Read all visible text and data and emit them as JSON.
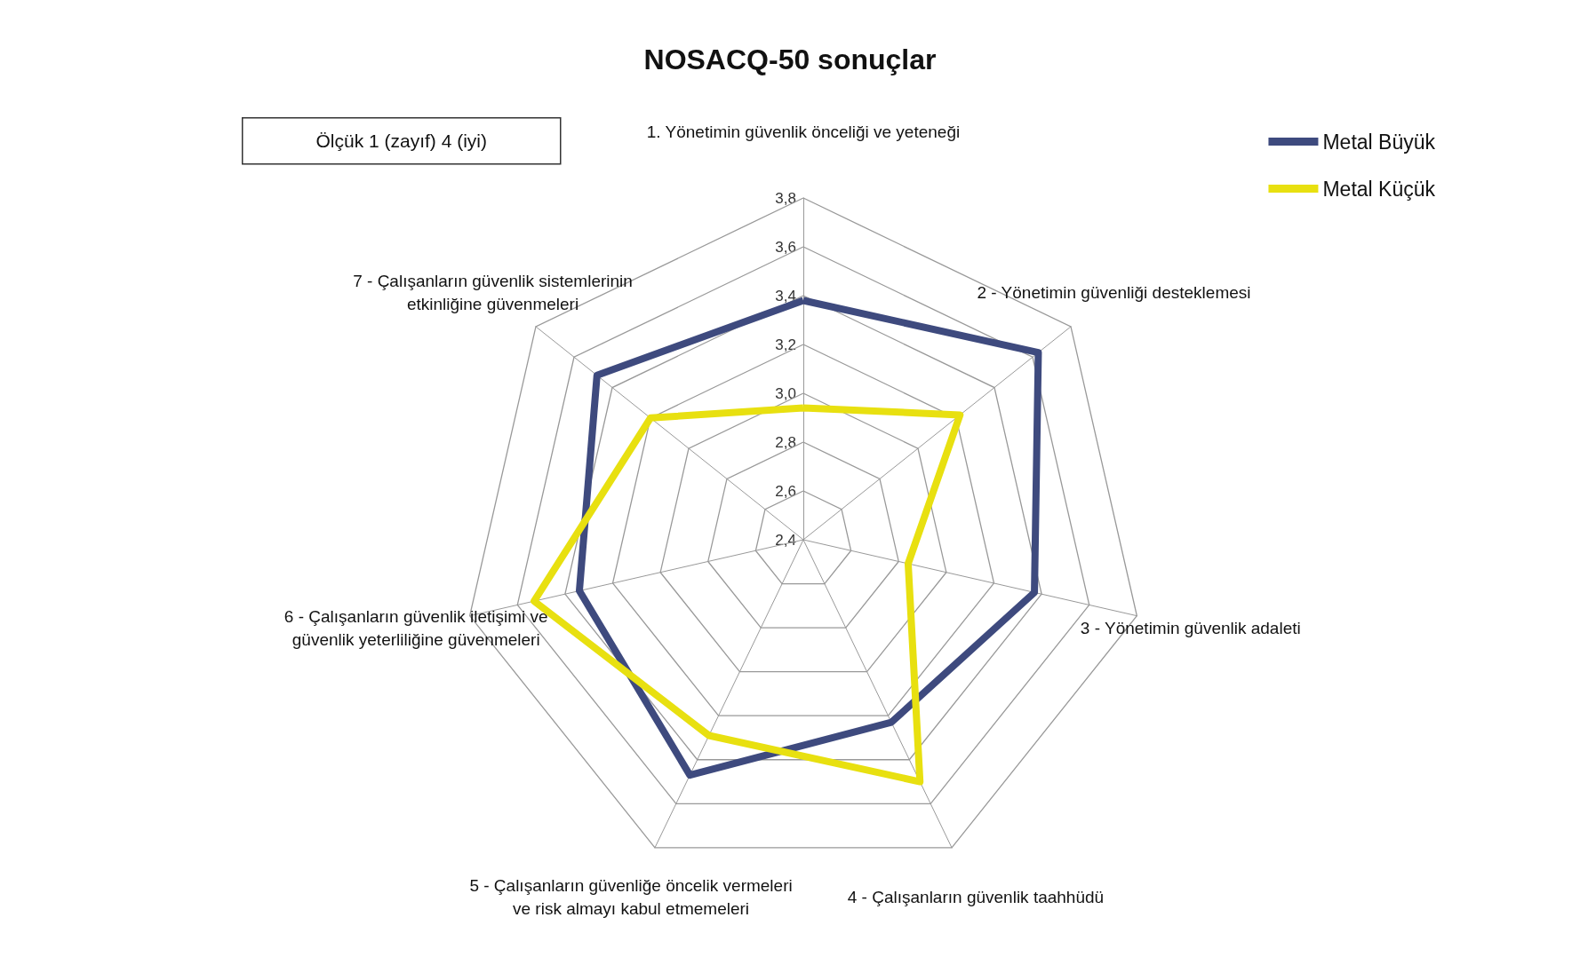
{
  "chart_data": {
    "type": "radar",
    "title": "NOSACQ-50 sonuçlar",
    "annotations": [
      "Ölçük 1 (zayıf) 4 (iyi)"
    ],
    "categories": [
      "1. Yönetimin güvenlik önceliği ve yeteneği",
      "2 - Yönetimin güvenliği desteklemesi",
      "3 - Yönetimin güvenlik adaleti",
      "4 - Çalışanların güvenlik taahhüdü",
      "5 - Çalışanların güvenliğe öncelik vermeleri ve risk almayı kabul etmemeleri",
      "6 - Çalışanların güvenlik iletişimi ve güvenlik yeterliliğine güvenmeleri",
      "7 - Çalışanların güvenlik sistemlerinin etkinliğine güvenmeleri"
    ],
    "series": [
      {
        "name": "Metal Büyük",
        "color": "#3e4a7e",
        "values": [
          3.38,
          3.63,
          3.37,
          3.23,
          3.47,
          3.34,
          3.48
        ]
      },
      {
        "name": "Metal Küçük",
        "color": "#e8e010",
        "values": [
          2.94,
          3.22,
          2.84,
          3.5,
          3.29,
          3.53,
          3.2
        ]
      }
    ],
    "ylim": [
      2.4,
      3.8
    ],
    "yticks": [
      {
        "value": 2.4,
        "label": "2,4"
      },
      {
        "value": 2.6,
        "label": "2,6"
      },
      {
        "value": 2.8,
        "label": "2,8"
      },
      {
        "value": 3.0,
        "label": "3,0"
      },
      {
        "value": 3.2,
        "label": "3,2"
      },
      {
        "value": 3.4,
        "label": "3,4"
      },
      {
        "value": 3.6,
        "label": "3,6"
      },
      {
        "value": 3.8,
        "label": "3,8"
      }
    ],
    "grid": true,
    "legend": "top right",
    "marker": "none",
    "line_style": "solid"
  }
}
